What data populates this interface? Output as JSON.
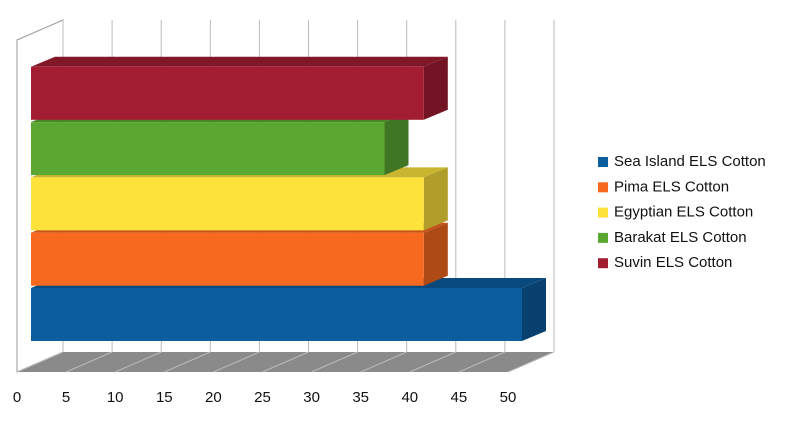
{
  "chart_data": {
    "type": "bar",
    "orientation": "horizontal",
    "three_d": true,
    "categories": [
      null
    ],
    "series": [
      {
        "name": "Sea Island ELS Cotton",
        "color": "#0b5d9e",
        "values": [
          50
        ]
      },
      {
        "name": "Pima ELS Cotton",
        "color": "#f7691f",
        "values": [
          40
        ]
      },
      {
        "name": "Egyptian ELS Cotton",
        "color": "#fde23c",
        "values": [
          40
        ]
      },
      {
        "name": "Barakat ELS Cotton",
        "color": "#5aa832",
        "values": [
          36
        ]
      },
      {
        "name": "Suvin ELS Cotton",
        "color": "#a31d32",
        "values": [
          40
        ]
      }
    ],
    "xlim": [
      0,
      50
    ],
    "xticks": [
      0,
      5,
      10,
      15,
      20,
      25,
      30,
      35,
      40,
      45,
      50
    ],
    "grid": true,
    "legend": "right"
  }
}
